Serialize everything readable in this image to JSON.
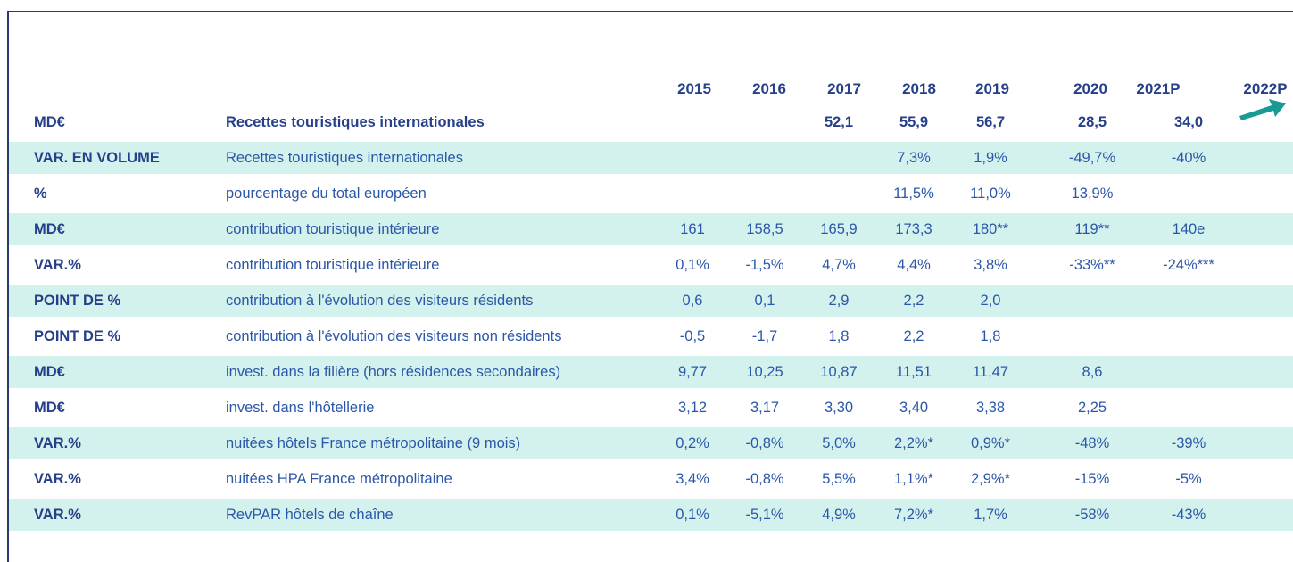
{
  "table": {
    "columns": [
      "2015",
      "2016",
      "2017",
      "2018",
      "2019",
      "2020",
      "2021P",
      "2022P"
    ],
    "rows": [
      {
        "unit": "MD€",
        "label": "Recettes touristiques internationales",
        "values": [
          null,
          null,
          "52,1",
          "55,9",
          "56,7",
          "28,5",
          "34,0",
          null
        ]
      },
      {
        "unit": "VAR. EN VOLUME",
        "label": "Recettes touristiques internationales",
        "values": [
          null,
          null,
          null,
          "7,3%",
          "1,9%",
          "-49,7%",
          "-40%",
          null
        ]
      },
      {
        "unit": "%",
        "label": "pourcentage du total européen",
        "values": [
          null,
          null,
          null,
          "11,5%",
          "11,0%",
          "13,9%",
          null,
          null
        ]
      },
      {
        "unit": "MD€",
        "label": "contribution touristique intérieure",
        "values": [
          "161",
          "158,5",
          "165,9",
          "173,3",
          "180**",
          "119**",
          "140e",
          null
        ]
      },
      {
        "unit": "VAR.%",
        "label": "contribution touristique intérieure",
        "values": [
          "0,1%",
          "-1,5%",
          "4,7%",
          "4,4%",
          "3,8%",
          "-33%**",
          "-24%***",
          null
        ]
      },
      {
        "unit": "POINT DE %",
        "label": "contribution à l'évolution des visiteurs résidents",
        "values": [
          "0,6",
          "0,1",
          "2,9",
          "2,2",
          "2,0",
          null,
          null,
          null
        ]
      },
      {
        "unit": "POINT DE %",
        "label": "contribution à l'évolution des visiteurs non résidents",
        "values": [
          "-0,5",
          "-1,7",
          "1,8",
          "2,2",
          "1,8",
          null,
          null,
          null
        ]
      },
      {
        "unit": "MD€",
        "label": "invest. dans la filière (hors résidences secondaires)",
        "values": [
          "9,77",
          "10,25",
          "10,87",
          "11,51",
          "11,47",
          "8,6",
          null,
          null
        ]
      },
      {
        "unit": "MD€",
        "label": "invest. dans l'hôtellerie",
        "values": [
          "3,12",
          "3,17",
          "3,30",
          "3,40",
          "3,38",
          "2,25",
          null,
          null
        ]
      },
      {
        "unit": "VAR.%",
        "label": "nuitées hôtels France métropolitaine (9 mois)",
        "values": [
          "0,2%",
          "-0,8%",
          "5,0%",
          "2,2%*",
          "0,9%*",
          "-48%",
          "-39%",
          null
        ]
      },
      {
        "unit": "VAR.%",
        "label": "nuitées HPA France métropolitaine",
        "values": [
          "3,4%",
          "-0,8%",
          "5,5%",
          "1,1%*",
          "2,9%*",
          "-15%",
          "-5%",
          null
        ]
      },
      {
        "unit": "VAR.%",
        "label": "RevPAR hôtels de chaîne",
        "values": [
          "0,1%",
          "-5,1%",
          "4,9%",
          "7,2%*",
          "1,7%",
          "-58%",
          "-43%",
          null
        ]
      }
    ]
  }
}
